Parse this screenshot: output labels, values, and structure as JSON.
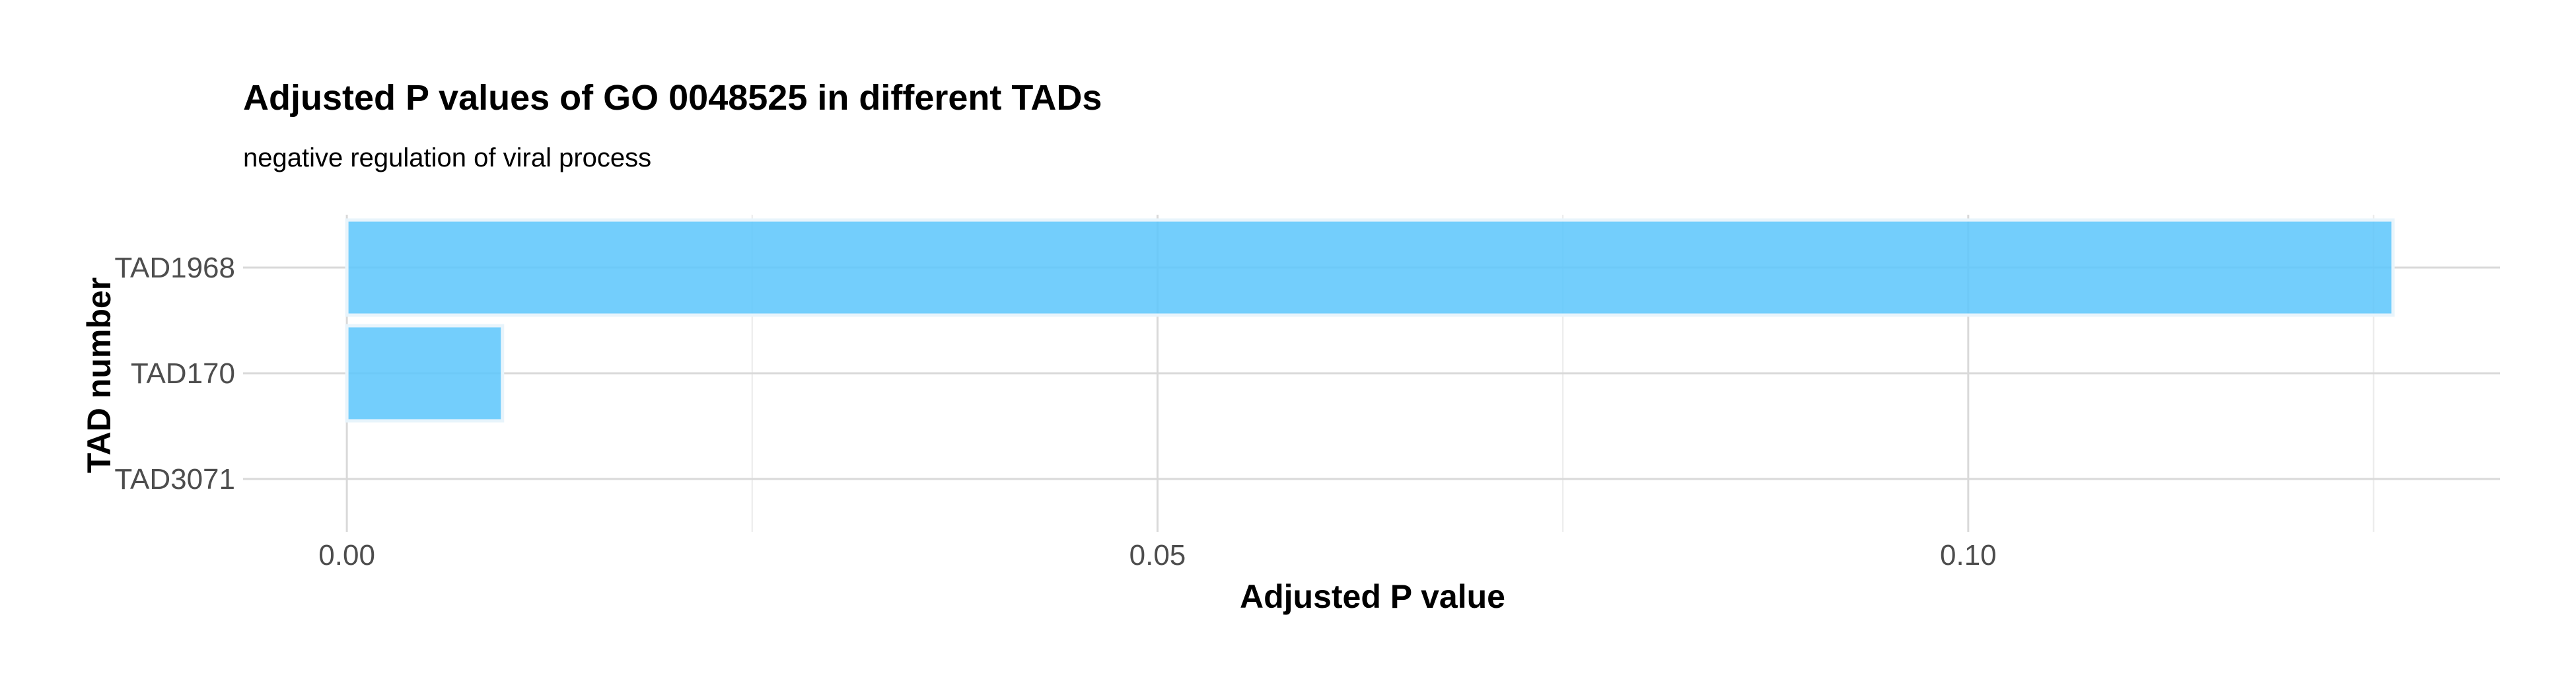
{
  "chart_data": {
    "type": "bar",
    "orientation": "horizontal",
    "title": "Adjusted P values of GO 0048525 in different TADs",
    "subtitle": "negative regulation of viral process",
    "xlabel": "Adjusted P value",
    "ylabel": "TAD number",
    "categories": [
      "TAD1968",
      "TAD170",
      "TAD3071"
    ],
    "values": [
      0.1262,
      0.0096,
      0.0
    ],
    "xlim": [
      -0.0064,
      0.1328
    ],
    "x_ticks": [
      0.0,
      0.05,
      0.1
    ],
    "x_tick_labels": [
      "0.00",
      "0.05",
      "0.10"
    ],
    "x_minor_ticks": [
      0.025,
      0.075,
      0.125
    ],
    "grid": true,
    "legend": "none",
    "bar_color": "#5bc5fb",
    "bar_outline_color": "#e8f4fb"
  }
}
